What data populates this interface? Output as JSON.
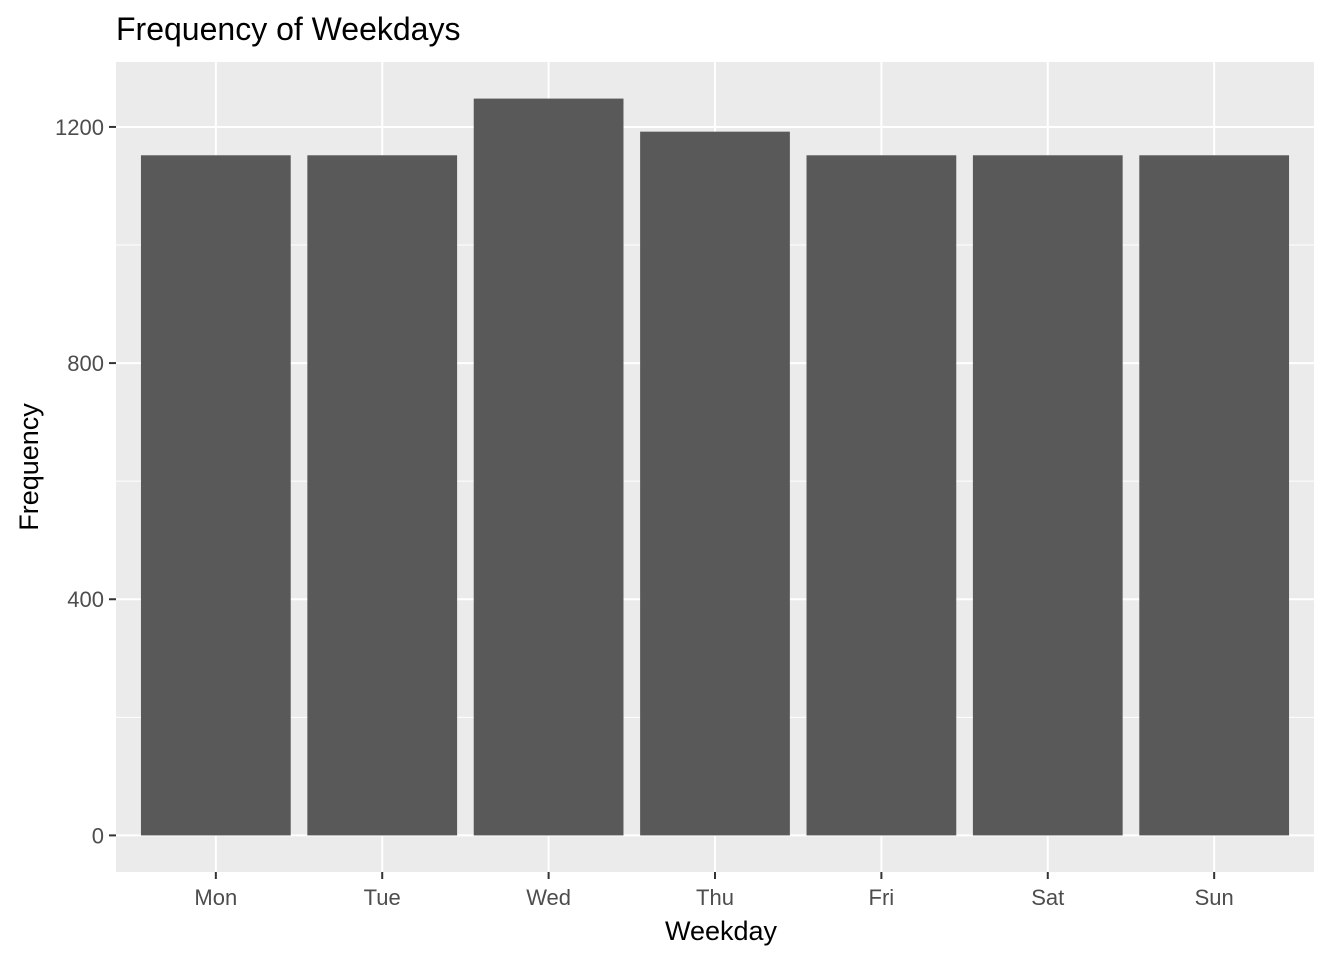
{
  "chart_data": {
    "type": "bar",
    "title": "Frequency of Weekdays",
    "xlabel": "Weekday",
    "ylabel": "Frequency",
    "categories": [
      "Mon",
      "Tue",
      "Wed",
      "Thu",
      "Fri",
      "Sat",
      "Sun"
    ],
    "values": [
      1152,
      1152,
      1248,
      1192,
      1152,
      1152,
      1152
    ],
    "ylim": [
      -62,
      1310
    ],
    "yticks": [
      0,
      400,
      800,
      1200
    ],
    "yticks_minor": [
      200,
      600,
      1000
    ],
    "grid": true,
    "legend": "none",
    "colors": {
      "bar": "#595959",
      "panel": "#ebebeb",
      "grid": "#ffffff",
      "tick_text": "#4d4d4d",
      "axis_tick": "#333333"
    }
  }
}
